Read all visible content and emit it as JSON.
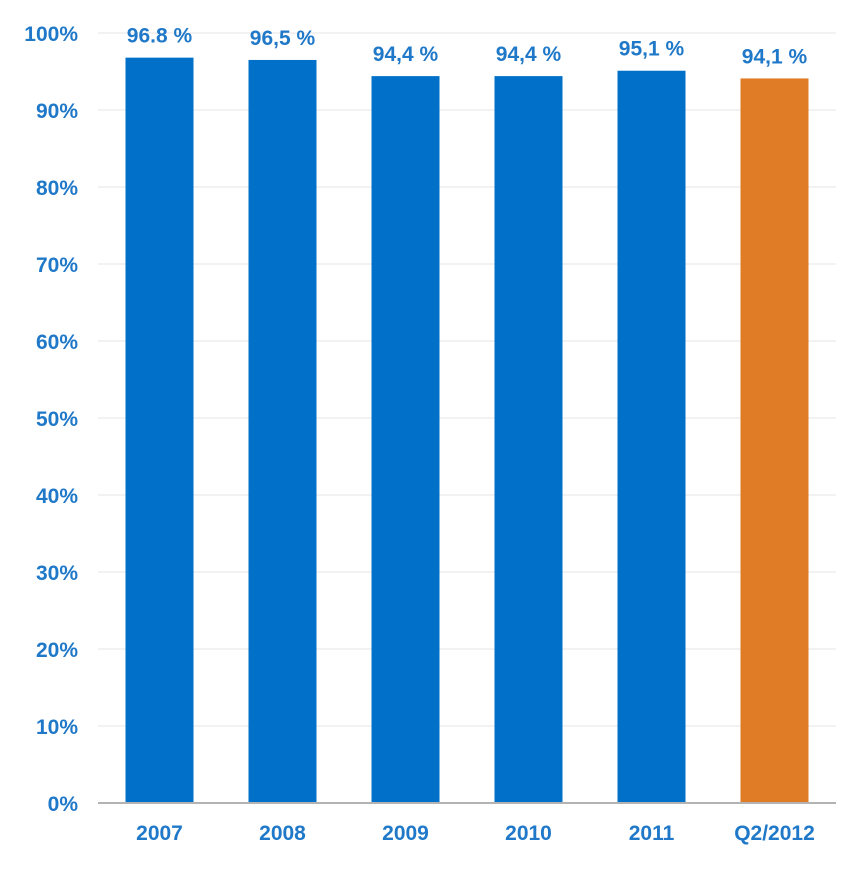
{
  "chart_data": {
    "type": "bar",
    "title": "",
    "xlabel": "",
    "ylabel": "",
    "categories": [
      "2007",
      "2008",
      "2009",
      "2010",
      "2011",
      "Q2/2012"
    ],
    "values": [
      96.8,
      96.5,
      94.4,
      94.4,
      95.1,
      94.1
    ],
    "data_labels": [
      "96.8 %",
      "96,5 %",
      "94,4 %",
      "94,4 %",
      "95,1 %",
      "94,1 %"
    ],
    "ylim": [
      0,
      100
    ],
    "yticks": [
      0,
      10,
      20,
      30,
      40,
      50,
      60,
      70,
      80,
      90,
      100
    ],
    "ytick_labels": [
      "0%",
      "10%",
      "20%",
      "30%",
      "40%",
      "50%",
      "60%",
      "70%",
      "80%",
      "90%",
      "100%"
    ],
    "grid": true,
    "legend": "none",
    "colors": {
      "bar": "#0070c8",
      "highlight_bar": "#e07b26",
      "text": "#1f78c8"
    },
    "highlight_index": 5
  }
}
